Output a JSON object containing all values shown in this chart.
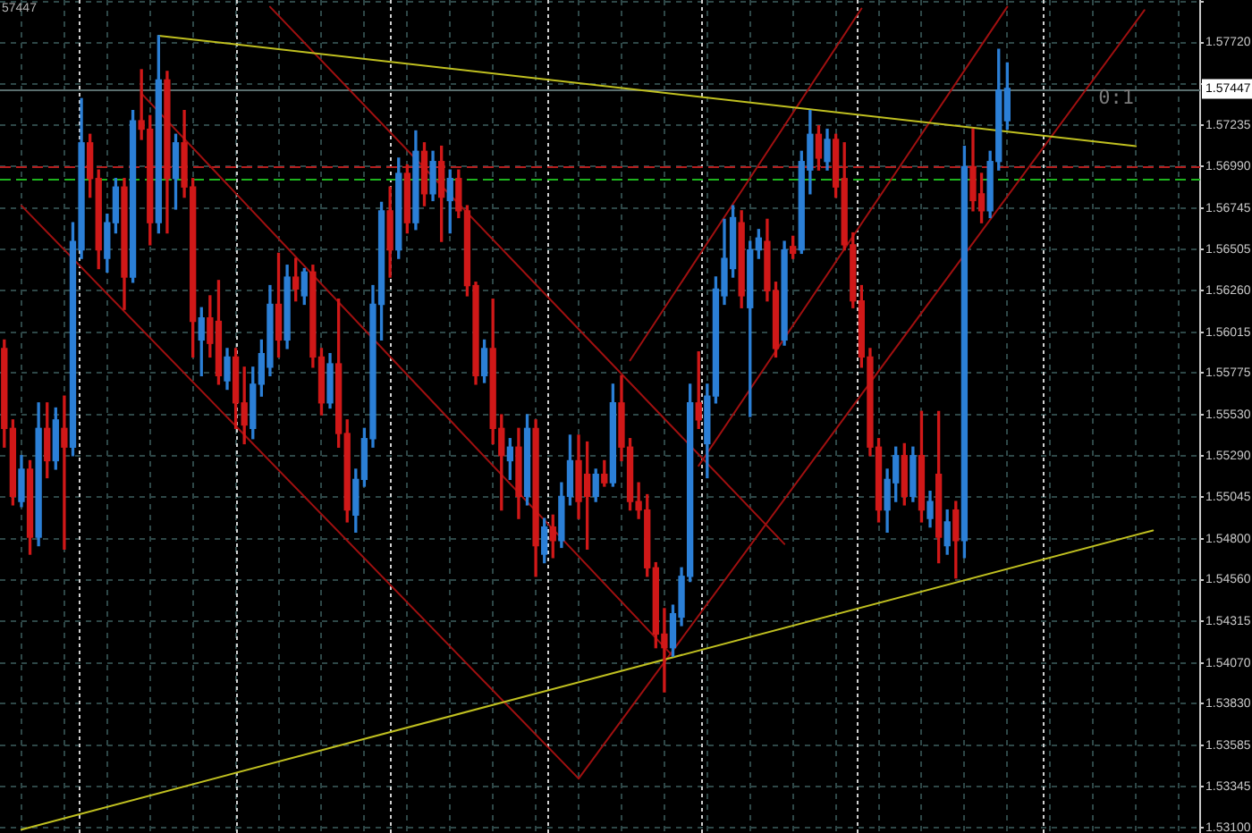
{
  "chart_data": {
    "type": "candlestick",
    "categories": [
      null,
      null,
      null,
      null,
      null,
      null,
      null,
      null,
      null,
      null,
      null,
      null,
      null,
      null,
      null,
      null,
      null,
      null,
      null,
      null,
      null,
      null,
      null,
      null,
      null,
      null,
      null,
      null,
      null,
      null,
      null,
      null,
      null,
      null,
      null,
      null,
      null,
      null,
      null,
      null,
      null,
      null,
      null,
      null,
      null,
      null,
      null,
      null,
      null,
      null,
      null,
      null,
      null,
      null,
      null,
      null,
      null,
      null,
      null,
      null,
      null,
      null,
      null,
      null,
      null,
      null,
      null,
      null,
      null,
      null,
      null,
      null,
      null,
      null,
      null,
      null,
      null,
      null,
      null,
      null,
      null,
      null,
      null,
      null,
      null,
      null,
      null,
      null,
      null,
      null,
      null,
      null,
      null,
      null,
      null,
      null,
      null,
      null,
      null,
      null,
      null,
      null,
      null,
      null,
      null,
      null,
      null,
      null,
      null,
      null,
      null,
      null,
      null,
      null,
      null,
      null,
      null,
      null,
      null,
      null,
      null,
      null,
      null,
      null,
      null,
      null,
      null,
      null,
      null,
      null,
      null,
      null,
      null,
      null,
      null,
      null,
      null,
      null,
      null,
      null
    ],
    "ohlc": [
      [
        1.5592,
        1.5597,
        1.5534,
        1.5545
      ],
      [
        1.5545,
        1.555,
        1.55,
        1.5505
      ],
      [
        1.5502,
        1.5529,
        1.5499,
        1.5521
      ],
      [
        1.5521,
        1.5526,
        1.5471,
        1.5481
      ],
      [
        1.5481,
        1.556,
        1.5476,
        1.5545
      ],
      [
        1.5545,
        1.556,
        1.5516,
        1.5526
      ],
      [
        1.5526,
        1.5557,
        1.5521,
        1.555
      ],
      [
        1.5545,
        1.5564,
        1.5474,
        1.5534
      ],
      [
        1.5534,
        1.5666,
        1.5529,
        1.5655
      ],
      [
        1.565,
        1.5739,
        1.5645,
        1.5713
      ],
      [
        1.5713,
        1.5718,
        1.5681,
        1.5692
      ],
      [
        1.5692,
        1.5697,
        1.5639,
        1.565
      ],
      [
        1.5645,
        1.5671,
        1.5637,
        1.5666
      ],
      [
        1.5666,
        1.5692,
        1.566,
        1.5687
      ],
      [
        1.5687,
        1.5692,
        1.5615,
        1.5634
      ],
      [
        1.5634,
        1.5732,
        1.5631,
        1.5726
      ],
      [
        1.5726,
        1.5756,
        1.5715,
        1.5721
      ],
      [
        1.5721,
        1.5729,
        1.5653,
        1.5666
      ],
      [
        1.5666,
        1.5776,
        1.566,
        1.575
      ],
      [
        1.575,
        1.5755,
        1.566,
        1.5692
      ],
      [
        1.5692,
        1.5718,
        1.5674,
        1.5713
      ],
      [
        1.5713,
        1.5732,
        1.5681,
        1.5687
      ],
      [
        1.5687,
        1.5692,
        1.5587,
        1.5608
      ],
      [
        1.5597,
        1.5616,
        1.5576,
        1.561
      ],
      [
        1.561,
        1.5623,
        1.5587,
        1.5595
      ],
      [
        1.5608,
        1.5632,
        1.5571,
        1.5576
      ],
      [
        1.5573,
        1.5592,
        1.5568,
        1.5587
      ],
      [
        1.5587,
        1.5592,
        1.5545,
        1.556
      ],
      [
        1.556,
        1.5581,
        1.5536,
        1.5547
      ],
      [
        1.5545,
        1.5581,
        1.5539,
        1.5571
      ],
      [
        1.5571,
        1.5597,
        1.5564,
        1.5589
      ],
      [
        1.5581,
        1.5629,
        1.5576,
        1.5618
      ],
      [
        1.5618,
        1.5648,
        1.5587,
        1.5597
      ],
      [
        1.5597,
        1.5641,
        1.5592,
        1.5634
      ],
      [
        1.5634,
        1.5645,
        1.562,
        1.5627
      ],
      [
        1.5623,
        1.5639,
        1.5618,
        1.5637
      ],
      [
        1.5637,
        1.5641,
        1.5581,
        1.5587
      ],
      [
        1.5587,
        1.5592,
        1.5553,
        1.556
      ],
      [
        1.556,
        1.5589,
        1.5557,
        1.5583
      ],
      [
        1.5583,
        1.5621,
        1.5534,
        1.5542
      ],
      [
        1.5542,
        1.555,
        1.549,
        1.5497
      ],
      [
        1.5494,
        1.5521,
        1.5484,
        1.5515
      ],
      [
        1.5515,
        1.5545,
        1.5511,
        1.5539
      ],
      [
        1.5539,
        1.5629,
        1.5534,
        1.5618
      ],
      [
        1.5618,
        1.5678,
        1.5597,
        1.5673
      ],
      [
        1.5673,
        1.5687,
        1.5634,
        1.565
      ],
      [
        1.565,
        1.5704,
        1.5645,
        1.5695
      ],
      [
        1.5695,
        1.57,
        1.566,
        1.5666
      ],
      [
        1.5666,
        1.572,
        1.5662,
        1.5708
      ],
      [
        1.5708,
        1.5713,
        1.5676,
        1.5683
      ],
      [
        1.5683,
        1.5708,
        1.5679,
        1.5702
      ],
      [
        1.5702,
        1.5711,
        1.5655,
        1.5681
      ],
      [
        1.5679,
        1.5697,
        1.566,
        1.5692
      ],
      [
        1.5692,
        1.5697,
        1.5669,
        1.5673
      ],
      [
        1.5673,
        1.5676,
        1.5623,
        1.5629
      ],
      [
        1.5629,
        1.5631,
        1.5571,
        1.5576
      ],
      [
        1.5576,
        1.5597,
        1.5572,
        1.5592
      ],
      [
        1.5592,
        1.5621,
        1.5536,
        1.5545
      ],
      [
        1.5545,
        1.5553,
        1.5497,
        1.5529
      ],
      [
        1.5526,
        1.5539,
        1.5515,
        1.5534
      ],
      [
        1.5534,
        1.5545,
        1.5492,
        1.5505
      ],
      [
        1.5505,
        1.5553,
        1.55,
        1.5545
      ],
      [
        1.5545,
        1.555,
        1.5458,
        1.5476
      ],
      [
        1.5471,
        1.5492,
        1.5466,
        1.5487
      ],
      [
        1.5487,
        1.5494,
        1.5469,
        1.5479
      ],
      [
        1.5479,
        1.5513,
        1.5475,
        1.5505
      ],
      [
        1.5505,
        1.5541,
        1.55,
        1.5526
      ],
      [
        1.5526,
        1.5541,
        1.5492,
        1.5502
      ],
      [
        1.5518,
        1.5537,
        1.5474,
        1.5505
      ],
      [
        1.5505,
        1.5521,
        1.5502,
        1.5518
      ],
      [
        1.5518,
        1.5526,
        1.5511,
        1.5513
      ],
      [
        1.5513,
        1.5571,
        1.5511,
        1.556
      ],
      [
        1.556,
        1.5576,
        1.5526,
        1.5534
      ],
      [
        1.5534,
        1.5539,
        1.5497,
        1.5502
      ],
      [
        1.5502,
        1.5513,
        1.5492,
        1.5497
      ],
      [
        1.5497,
        1.5506,
        1.5458,
        1.5463
      ],
      [
        1.5463,
        1.5466,
        1.5416,
        1.5424
      ],
      [
        1.5424,
        1.5439,
        1.539,
        1.5416
      ],
      [
        1.5416,
        1.5441,
        1.5411,
        1.5436
      ],
      [
        1.5434,
        1.5463,
        1.5429,
        1.5458
      ],
      [
        1.5458,
        1.5571,
        1.5455,
        1.556
      ],
      [
        1.556,
        1.559,
        1.5545,
        1.555
      ],
      [
        1.5536,
        1.5571,
        1.5516,
        1.5564
      ],
      [
        1.5564,
        1.5634,
        1.556,
        1.5627
      ],
      [
        1.5623,
        1.5668,
        1.5618,
        1.5645
      ],
      [
        1.5639,
        1.5676,
        1.5634,
        1.5669
      ],
      [
        1.5666,
        1.5673,
        1.5616,
        1.5623
      ],
      [
        1.5616,
        1.5655,
        1.5552,
        1.565
      ],
      [
        1.565,
        1.5662,
        1.5645,
        1.5657
      ],
      [
        1.5655,
        1.5668,
        1.562,
        1.5626
      ],
      [
        1.5626,
        1.5631,
        1.5587,
        1.5592
      ],
      [
        1.5597,
        1.5655,
        1.5594,
        1.565
      ],
      [
        1.5652,
        1.5658,
        1.5645,
        1.5648
      ],
      [
        1.565,
        1.5708,
        1.5648,
        1.5702
      ],
      [
        1.5697,
        1.5732,
        1.5683,
        1.5718
      ],
      [
        1.5718,
        1.5723,
        1.5697,
        1.5704
      ],
      [
        1.5702,
        1.5721,
        1.5697,
        1.5715
      ],
      [
        1.5715,
        1.5718,
        1.5681,
        1.5687
      ],
      [
        1.5692,
        1.5713,
        1.565,
        1.5653
      ],
      [
        1.5653,
        1.566,
        1.5616,
        1.562
      ],
      [
        1.562,
        1.5629,
        1.5581,
        1.5587
      ],
      [
        1.5587,
        1.5592,
        1.5529,
        1.5534
      ],
      [
        1.5534,
        1.5539,
        1.549,
        1.5497
      ],
      [
        1.5497,
        1.5521,
        1.5484,
        1.5515
      ],
      [
        1.5513,
        1.5534,
        1.5502,
        1.5529
      ],
      [
        1.5529,
        1.5536,
        1.55,
        1.5505
      ],
      [
        1.5505,
        1.5534,
        1.5502,
        1.5529
      ],
      [
        1.5529,
        1.5555,
        1.549,
        1.5497
      ],
      [
        1.5492,
        1.5508,
        1.5487,
        1.5502
      ],
      [
        1.5518,
        1.5555,
        1.5466,
        1.5481
      ],
      [
        1.5476,
        1.5497,
        1.5471,
        1.549
      ],
      [
        1.5497,
        1.5502,
        1.5457,
        1.5479
      ],
      [
        1.5479,
        1.5711,
        1.5469,
        1.5699
      ],
      [
        1.5699,
        1.5721,
        1.5673,
        1.5679
      ],
      [
        1.5683,
        1.5695,
        1.5666,
        1.5673
      ],
      [
        1.5673,
        1.5708,
        1.5669,
        1.5702
      ],
      [
        1.5702,
        1.5768,
        1.5697,
        1.5744
      ],
      [
        1.5726,
        1.576,
        1.5721,
        1.5745
      ],
      null,
      null,
      null,
      null,
      null,
      null,
      null,
      null,
      null,
      null,
      null,
      null,
      null,
      null,
      null,
      null,
      null,
      null,
      null,
      null,
      null,
      null
    ],
    "colors": [
      "#d01818",
      "#d01818",
      "#2b7fd6",
      "#d01818",
      "#2b7fd6",
      "#d01818",
      "#2b7fd6",
      "#d01818",
      "#2b7fd6",
      "#2b7fd6",
      "#d01818",
      "#d01818",
      "#2b7fd6",
      "#2b7fd6",
      "#d01818",
      "#2b7fd6",
      "#d01818",
      "#d01818",
      "#2b7fd6",
      "#d01818",
      "#2b7fd6",
      "#d01818",
      "#d01818",
      "#2b7fd6",
      "#d01818",
      "#d01818",
      "#2b7fd6",
      "#d01818",
      "#d01818",
      "#2b7fd6",
      "#2b7fd6",
      "#2b7fd6",
      "#d01818",
      "#2b7fd6",
      "#d01818",
      "#2b7fd6",
      "#d01818",
      "#d01818",
      "#2b7fd6",
      "#d01818",
      "#d01818",
      "#2b7fd6",
      "#2b7fd6",
      "#2b7fd6",
      "#2b7fd6",
      "#d01818",
      "#2b7fd6",
      "#d01818",
      "#2b7fd6",
      "#d01818",
      "#2b7fd6",
      "#d01818",
      "#2b7fd6",
      "#d01818",
      "#d01818",
      "#d01818",
      "#2b7fd6",
      "#d01818",
      "#d01818",
      "#2b7fd6",
      "#d01818",
      "#2b7fd6",
      "#d01818",
      "#2b7fd6",
      "#d01818",
      "#2b7fd6",
      "#2b7fd6",
      "#d01818",
      "#d01818",
      "#2b7fd6",
      "#d01818",
      "#2b7fd6",
      "#d01818",
      "#d01818",
      "#d01818",
      "#d01818",
      "#d01818",
      "#d01818",
      "#2b7fd6",
      "#2b7fd6",
      "#2b7fd6",
      "#d01818",
      "#2b7fd6",
      "#2b7fd6",
      "#2b7fd6",
      "#2b7fd6",
      "#d01818",
      "#2b7fd6",
      "#2b7fd6",
      "#d01818",
      "#d01818",
      "#2b7fd6",
      "#d01818",
      "#2b7fd6",
      "#2b7fd6",
      "#d01818",
      "#2b7fd6",
      "#d01818",
      "#d01818",
      "#d01818",
      "#d01818",
      "#d01818",
      "#d01818",
      "#2b7fd6",
      "#2b7fd6",
      "#d01818",
      "#2b7fd6",
      "#d01818",
      "#2b7fd6",
      "#d01818",
      "#2b7fd6",
      "#d01818",
      "#2b7fd6",
      "#d01818",
      "#d01818",
      "#2b7fd6",
      "#2b7fd6",
      "#2b7fd6",
      null,
      null,
      null,
      null,
      null,
      null,
      null,
      null,
      null,
      null,
      null,
      null,
      null,
      null,
      null,
      null,
      null,
      null,
      null,
      null,
      null,
      null
    ],
    "series": [
      {
        "type": "line",
        "color": "#c0c020",
        "values": [
          null,
          null,
          null,
          null,
          null,
          null,
          null,
          null,
          null,
          null,
          null,
          null,
          null,
          null,
          null,
          null,
          null,
          null,
          1.5776,
          null,
          null,
          null,
          null,
          null,
          null,
          null,
          null,
          null,
          null,
          null,
          null,
          null,
          null,
          null,
          null,
          null,
          null,
          null,
          null,
          null,
          null,
          null,
          null,
          null,
          null,
          null,
          null,
          null,
          null,
          null,
          null,
          null,
          null,
          null,
          null,
          null,
          null,
          null,
          null,
          null,
          null,
          null,
          null,
          null,
          null,
          null,
          null,
          null,
          null,
          null,
          null,
          null,
          null,
          null,
          null,
          null,
          null,
          null,
          null,
          null,
          null,
          null,
          null,
          null,
          null,
          null,
          null,
          null,
          null,
          null,
          null,
          null,
          null,
          null,
          null,
          null,
          null,
          null,
          null,
          null,
          null,
          null,
          null,
          null,
          null,
          null,
          null,
          null,
          null,
          null,
          null,
          null,
          null,
          null,
          null,
          null,
          null,
          null,
          null,
          null,
          null,
          null,
          null,
          null,
          null,
          null,
          null,
          null,
          null,
          null,
          null,
          null,
          1.5711,
          null,
          null,
          null,
          null,
          null,
          null,
          null
        ]
      },
      {
        "type": "line",
        "color": "#c0c020",
        "values": [
          null,
          null,
          1.5309,
          null,
          null,
          null,
          null,
          null,
          null,
          null,
          null,
          null,
          null,
          null,
          null,
          null,
          null,
          null,
          null,
          null,
          null,
          null,
          null,
          null,
          null,
          null,
          null,
          null,
          null,
          null,
          null,
          null,
          null,
          null,
          null,
          null,
          null,
          null,
          null,
          null,
          null,
          null,
          null,
          null,
          null,
          null,
          null,
          null,
          null,
          null,
          null,
          null,
          null,
          null,
          null,
          null,
          null,
          null,
          null,
          null,
          null,
          null,
          null,
          null,
          null,
          null,
          null,
          null,
          null,
          null,
          null,
          null,
          null,
          null,
          null,
          null,
          null,
          null,
          null,
          null,
          null,
          null,
          null,
          null,
          null,
          null,
          null,
          null,
          null,
          null,
          null,
          null,
          null,
          null,
          null,
          null,
          null,
          null,
          null,
          null,
          null,
          null,
          null,
          null,
          null,
          null,
          null,
          null,
          null,
          null,
          null,
          null,
          null,
          null,
          null,
          null,
          null,
          null,
          null,
          null,
          null,
          null,
          null,
          null,
          null,
          null,
          null,
          null,
          null,
          null,
          null,
          null,
          null,
          null,
          1.5485,
          null,
          null,
          null,
          null,
          null
        ]
      },
      {
        "type": "line",
        "color": "#a01010",
        "values": [
          null,
          null,
          null,
          null,
          null,
          null,
          null,
          null,
          null,
          null,
          null,
          null,
          null,
          null,
          null,
          null,
          null,
          null,
          null,
          null,
          null,
          null,
          null,
          null,
          null,
          null,
          null,
          null,
          null,
          null,
          null,
          1.5793,
          null,
          null,
          null,
          null,
          null,
          null,
          null,
          null,
          null,
          null,
          null,
          null,
          null,
          null,
          null,
          null,
          null,
          null,
          null,
          null,
          null,
          null,
          null,
          null,
          null,
          null,
          null,
          null,
          null,
          null,
          null,
          null,
          null,
          null,
          null,
          null,
          null,
          null,
          null,
          null,
          null,
          null,
          null,
          null,
          null,
          null,
          null,
          null,
          null,
          null,
          null,
          null,
          null,
          null,
          null,
          null,
          null,
          null,
          null,
          1.5477,
          null,
          null,
          null,
          null,
          null,
          null,
          null,
          null,
          null,
          null,
          null,
          null,
          null,
          null,
          null,
          null,
          null,
          null,
          null,
          null,
          null,
          null,
          null,
          null,
          null,
          null,
          null,
          null,
          null,
          null,
          null,
          null,
          null,
          null,
          null,
          null,
          null,
          null,
          null,
          null,
          null,
          null,
          null,
          null,
          null,
          null,
          null,
          null
        ]
      },
      {
        "type": "line",
        "color": "#a01010",
        "values": [
          null,
          null,
          null,
          null,
          null,
          null,
          null,
          null,
          null,
          null,
          null,
          null,
          null,
          null,
          null,
          null,
          1.5742,
          null,
          null,
          null,
          null,
          null,
          null,
          null,
          null,
          null,
          null,
          null,
          null,
          null,
          null,
          null,
          null,
          null,
          null,
          null,
          null,
          null,
          null,
          null,
          null,
          null,
          null,
          null,
          null,
          null,
          null,
          null,
          null,
          null,
          null,
          null,
          null,
          null,
          null,
          null,
          null,
          null,
          null,
          null,
          null,
          null,
          null,
          null,
          null,
          null,
          null,
          null,
          null,
          null,
          null,
          null,
          null,
          null,
          null,
          null,
          null,
          null,
          1.5411,
          null,
          null,
          null,
          null,
          null,
          null,
          null,
          null,
          null,
          null,
          null,
          null,
          null,
          null,
          null,
          null,
          null,
          null,
          null,
          null,
          null,
          null,
          null,
          null,
          null,
          null,
          null,
          null,
          null,
          null,
          null,
          null,
          null,
          null,
          null,
          null,
          null,
          null,
          null,
          null,
          null,
          null,
          null,
          null,
          null,
          null,
          null,
          null,
          null,
          null,
          null,
          null,
          null,
          null,
          null,
          null,
          null,
          null,
          null,
          null,
          null
        ]
      },
      {
        "type": "line",
        "color": "#a01010",
        "values": [
          null,
          null,
          1.5676,
          null,
          null,
          null,
          null,
          null,
          null,
          null,
          null,
          null,
          null,
          null,
          null,
          null,
          null,
          null,
          null,
          null,
          null,
          null,
          null,
          null,
          null,
          null,
          null,
          null,
          null,
          null,
          null,
          null,
          null,
          null,
          null,
          null,
          null,
          null,
          null,
          null,
          null,
          null,
          null,
          null,
          null,
          null,
          null,
          null,
          null,
          null,
          null,
          null,
          null,
          null,
          null,
          null,
          null,
          null,
          null,
          null,
          null,
          null,
          null,
          null,
          null,
          null,
          null,
          1.5339,
          null,
          null,
          null,
          null,
          null,
          null,
          null,
          null,
          null,
          null,
          null,
          null,
          null,
          null,
          null,
          null,
          null,
          null,
          null,
          null,
          null,
          null,
          null,
          null,
          null,
          null,
          null,
          null,
          null,
          null,
          null,
          null,
          null,
          null,
          null,
          null,
          null,
          null,
          null,
          null,
          null,
          null,
          null,
          null,
          null,
          null,
          null,
          null,
          null,
          null,
          null,
          null,
          null,
          null,
          null,
          null,
          null,
          null,
          null,
          null,
          null,
          null,
          null,
          null,
          null,
          null,
          null,
          null,
          null,
          null,
          null,
          null
        ]
      },
      {
        "type": "line",
        "color": "#a01010",
        "values": [
          null,
          null,
          null,
          null,
          null,
          null,
          null,
          null,
          null,
          null,
          null,
          null,
          null,
          null,
          null,
          null,
          null,
          null,
          null,
          null,
          null,
          null,
          null,
          null,
          null,
          null,
          null,
          null,
          null,
          null,
          null,
          null,
          null,
          null,
          null,
          null,
          null,
          null,
          null,
          null,
          null,
          null,
          null,
          null,
          null,
          null,
          null,
          null,
          null,
          null,
          null,
          null,
          null,
          null,
          null,
          null,
          null,
          null,
          null,
          null,
          null,
          null,
          null,
          null,
          null,
          null,
          null,
          1.5339,
          null,
          null,
          null,
          null,
          null,
          null,
          null,
          null,
          null,
          null,
          null,
          null,
          null,
          null,
          null,
          null,
          null,
          null,
          null,
          null,
          null,
          null,
          null,
          null,
          null,
          null,
          null,
          null,
          null,
          null,
          null,
          null,
          null,
          null,
          null,
          null,
          null,
          null,
          null,
          null,
          null,
          null,
          null,
          null,
          null,
          null,
          null,
          null,
          null,
          null,
          null,
          null,
          null,
          null,
          null,
          null,
          null,
          null,
          null,
          null,
          null,
          null,
          null,
          null,
          null,
          1.5791,
          null,
          null,
          null,
          null,
          null,
          null
        ]
      },
      {
        "type": "line",
        "color": "#a01010",
        "values": [
          null,
          null,
          null,
          null,
          null,
          null,
          null,
          null,
          null,
          null,
          null,
          null,
          null,
          null,
          null,
          null,
          null,
          null,
          null,
          null,
          null,
          null,
          null,
          null,
          null,
          null,
          null,
          null,
          null,
          null,
          null,
          null,
          null,
          null,
          null,
          null,
          null,
          null,
          null,
          null,
          null,
          null,
          null,
          null,
          null,
          null,
          null,
          null,
          null,
          null,
          null,
          null,
          null,
          null,
          null,
          null,
          null,
          null,
          null,
          null,
          null,
          null,
          null,
          null,
          null,
          null,
          null,
          null,
          null,
          null,
          null,
          null,
          null,
          1.5585,
          null,
          null,
          null,
          null,
          null,
          null,
          null,
          null,
          null,
          null,
          null,
          null,
          null,
          null,
          null,
          null,
          null,
          null,
          null,
          null,
          null,
          null,
          null,
          null,
          null,
          null,
          1.5792,
          null,
          null,
          null,
          null,
          null,
          null,
          null,
          null,
          null,
          null,
          null,
          null,
          null,
          null,
          null,
          null,
          null,
          null,
          null,
          null,
          null,
          null,
          null,
          null,
          null,
          null,
          null,
          null,
          null,
          null,
          null,
          null,
          null,
          null,
          null,
          null,
          null,
          null,
          null
        ]
      },
      {
        "type": "line",
        "color": "#a01010",
        "values": [
          null,
          null,
          null,
          null,
          null,
          null,
          null,
          null,
          null,
          null,
          null,
          null,
          null,
          null,
          null,
          null,
          null,
          null,
          null,
          null,
          null,
          null,
          null,
          null,
          null,
          null,
          null,
          null,
          null,
          null,
          null,
          null,
          null,
          null,
          null,
          null,
          null,
          null,
          null,
          null,
          null,
          null,
          null,
          null,
          null,
          null,
          null,
          null,
          null,
          null,
          null,
          null,
          null,
          null,
          null,
          null,
          null,
          null,
          null,
          null,
          null,
          null,
          null,
          null,
          null,
          null,
          null,
          null,
          null,
          null,
          null,
          null,
          null,
          null,
          null,
          null,
          null,
          null,
          null,
          null,
          null,
          1.5523,
          null,
          null,
          null,
          null,
          null,
          null,
          null,
          null,
          null,
          null,
          null,
          null,
          null,
          null,
          null,
          null,
          null,
          null,
          null,
          null,
          null,
          null,
          null,
          null,
          null,
          null,
          null,
          null,
          null,
          null,
          null,
          null,
          null,
          null,
          null,
          1.5793,
          null,
          null,
          null,
          null,
          null,
          null,
          null,
          null,
          null,
          null,
          null,
          null,
          null,
          null,
          null,
          null,
          null,
          null,
          null,
          null,
          null,
          null
        ]
      }
    ],
    "ylim": [
      1.5307,
      1.5797
    ],
    "yticks": [
      {
        "value": 1.5796,
        "label": null
      },
      {
        "value": 1.5772,
        "label": "1.57720"
      },
      {
        "value": 1.57475,
        "label": null
      },
      1.57235,
      {
        "value": 1.5699,
        "label": "1.56990"
      },
      1.56745,
      1.56505,
      {
        "value": 1.5626,
        "label": "1.56260"
      },
      1.56015,
      1.55775,
      {
        "value": 1.5553,
        "label": "1.55530"
      },
      {
        "value": 1.5529,
        "label": "1.55290"
      },
      1.55045,
      {
        "value": 1.548,
        "label": "1.54800"
      },
      {
        "value": 1.5456,
        "label": "1.54560"
      },
      1.54315,
      {
        "value": 1.5407,
        "label": "1.54070"
      },
      {
        "value": 1.5383,
        "label": "1.53830"
      },
      1.53585,
      1.53345,
      {
        "value": 1.531,
        "label": "1.53100"
      }
    ],
    "grid": true,
    "tick_labels": "y",
    "ref_lines": [
      {
        "axis": "y",
        "value": 1.57447,
        "label": "1.57447",
        "color": "#5a6e6e"
      },
      {
        "axis": "y",
        "value": 1.5699,
        "color": "#b41e1e",
        "line_style": "dashed"
      },
      {
        "axis": "y",
        "value": 1.5692,
        "color": "#1eb41e",
        "line_style": "dashed"
      }
    ],
    "annotations": [
      "57447",
      {
        "text": "0:1",
        "y": 1.5739
      }
    ]
  }
}
